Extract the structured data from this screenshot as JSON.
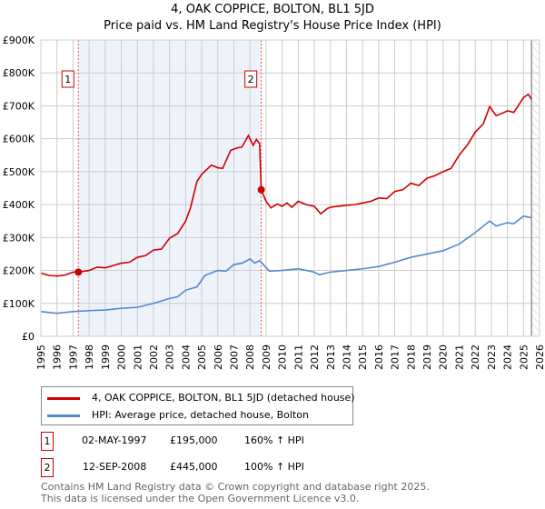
{
  "title": "4, OAK COPPICE, BOLTON, BL1 5JD",
  "subtitle": "Price paid vs. HM Land Registry's House Price Index (HPI)",
  "chart_data": {
    "type": "line",
    "title": "4, OAK COPPICE, BOLTON, BL1 5JD",
    "subtitle": "Price paid vs. HM Land Registry's House Price Index (HPI)",
    "xlim": [
      1995,
      2026
    ],
    "ylim": [
      0,
      900000
    ],
    "x_ticks": [
      "1995",
      "1996",
      "1997",
      "1998",
      "1999",
      "2000",
      "2001",
      "2002",
      "2003",
      "2004",
      "2005",
      "2006",
      "2007",
      "2008",
      "2009",
      "2010",
      "2011",
      "2012",
      "2013",
      "2014",
      "2015",
      "2016",
      "2017",
      "2018",
      "2019",
      "2020",
      "2021",
      "2022",
      "2023",
      "2024",
      "2025",
      "2026"
    ],
    "y_ticks": [
      {
        "v": 0,
        "l": "£0"
      },
      {
        "v": 100000,
        "l": "£100K"
      },
      {
        "v": 200000,
        "l": "£200K"
      },
      {
        "v": 300000,
        "l": "£300K"
      },
      {
        "v": 400000,
        "l": "£400K"
      },
      {
        "v": 500000,
        "l": "£500K"
      },
      {
        "v": 600000,
        "l": "£600K"
      },
      {
        "v": 700000,
        "l": "£700K"
      },
      {
        "v": 800000,
        "l": "£800K"
      },
      {
        "v": 900000,
        "l": "£900K"
      }
    ],
    "grid": true,
    "colors": {
      "property": "#cc0000",
      "hpi": "#5588cc",
      "shade": "#eef2fb"
    },
    "shaded_range": [
      1997.33,
      2008.7
    ],
    "forecast_hatch_from": 2025.5,
    "series": [
      {
        "name": "4, OAK COPPICE, BOLTON, BL1 5JD (detached house)",
        "x": [
          1995,
          1995.5,
          1996,
          1996.5,
          1997,
          1997.33,
          1998,
          1998.5,
          1999,
          1999.5,
          2000,
          2000.5,
          2001,
          2001.5,
          2002,
          2002.5,
          2003,
          2003.5,
          2004,
          2004.3,
          2004.7,
          2005,
          2005.6,
          2006,
          2006.3,
          2006.8,
          2007.2,
          2007.5,
          2007.9,
          2008.2,
          2008.4,
          2008.6,
          2008.7,
          2009,
          2009.3,
          2009.7,
          2010,
          2010.3,
          2010.6,
          2011,
          2011.5,
          2012,
          2012.4,
          2012.8,
          2013,
          2013.5,
          2014,
          2014.5,
          2015,
          2015.5,
          2016,
          2016.5,
          2017,
          2017.5,
          2018,
          2018.5,
          2019,
          2019.5,
          2020,
          2020.5,
          2021,
          2021.5,
          2022,
          2022.5,
          2022.9,
          2023.3,
          2023.8,
          2024,
          2024.4,
          2025,
          2025.3,
          2025.5
        ],
        "y": [
          192000,
          185000,
          183000,
          186000,
          195000,
          195000,
          200000,
          210000,
          208000,
          215000,
          222000,
          225000,
          240000,
          245000,
          262000,
          265000,
          298000,
          312000,
          350000,
          390000,
          470000,
          492000,
          520000,
          512000,
          510000,
          565000,
          572000,
          575000,
          610000,
          580000,
          598000,
          585000,
          445000,
          410000,
          390000,
          402000,
          395000,
          405000,
          392000,
          410000,
          400000,
          395000,
          372000,
          388000,
          392000,
          395000,
          398000,
          400000,
          405000,
          410000,
          420000,
          418000,
          440000,
          445000,
          465000,
          458000,
          480000,
          488000,
          500000,
          510000,
          550000,
          580000,
          620000,
          645000,
          698000,
          670000,
          680000,
          685000,
          680000,
          725000,
          735000,
          720000
        ]
      },
      {
        "name": "HPI: Average price, detached house, Bolton",
        "x": [
          1995,
          1996,
          1997,
          1998,
          1999,
          2000,
          2001,
          2002,
          2003,
          2003.5,
          2004,
          2004.7,
          2005.2,
          2006,
          2006.5,
          2007,
          2007.5,
          2008,
          2008.3,
          2008.6,
          2009.2,
          2010,
          2011,
          2012,
          2012.3,
          2013,
          2014,
          2015,
          2016,
          2017,
          2018,
          2019,
          2020,
          2021,
          2022,
          2022.9,
          2023.3,
          2024,
          2024.4,
          2025,
          2025.5
        ],
        "y": [
          75000,
          70000,
          75000,
          78000,
          80000,
          85000,
          88000,
          100000,
          115000,
          120000,
          140000,
          150000,
          185000,
          200000,
          198000,
          218000,
          222000,
          235000,
          222000,
          230000,
          198000,
          200000,
          205000,
          195000,
          187000,
          195000,
          200000,
          205000,
          212000,
          225000,
          240000,
          250000,
          260000,
          280000,
          315000,
          350000,
          335000,
          345000,
          342000,
          365000,
          360000
        ]
      }
    ],
    "sales": [
      {
        "label": "1",
        "x": 1997.33,
        "y": 195000
      },
      {
        "label": "2",
        "x": 2008.7,
        "y": 445000
      }
    ]
  },
  "legend": {
    "property": "4, OAK COPPICE, BOLTON, BL1 5JD (detached house)",
    "hpi": "HPI: Average price, detached house, Bolton"
  },
  "table": [
    {
      "num": "1",
      "date": "02-MAY-1997",
      "price": "£195,000",
      "hpi": "160% ↑ HPI"
    },
    {
      "num": "2",
      "date": "12-SEP-2008",
      "price": "£445,000",
      "hpi": "100% ↑ HPI"
    }
  ],
  "footer": [
    "Contains HM Land Registry data © Crown copyright and database right 2025.",
    "This data is licensed under the Open Government Licence v3.0."
  ]
}
